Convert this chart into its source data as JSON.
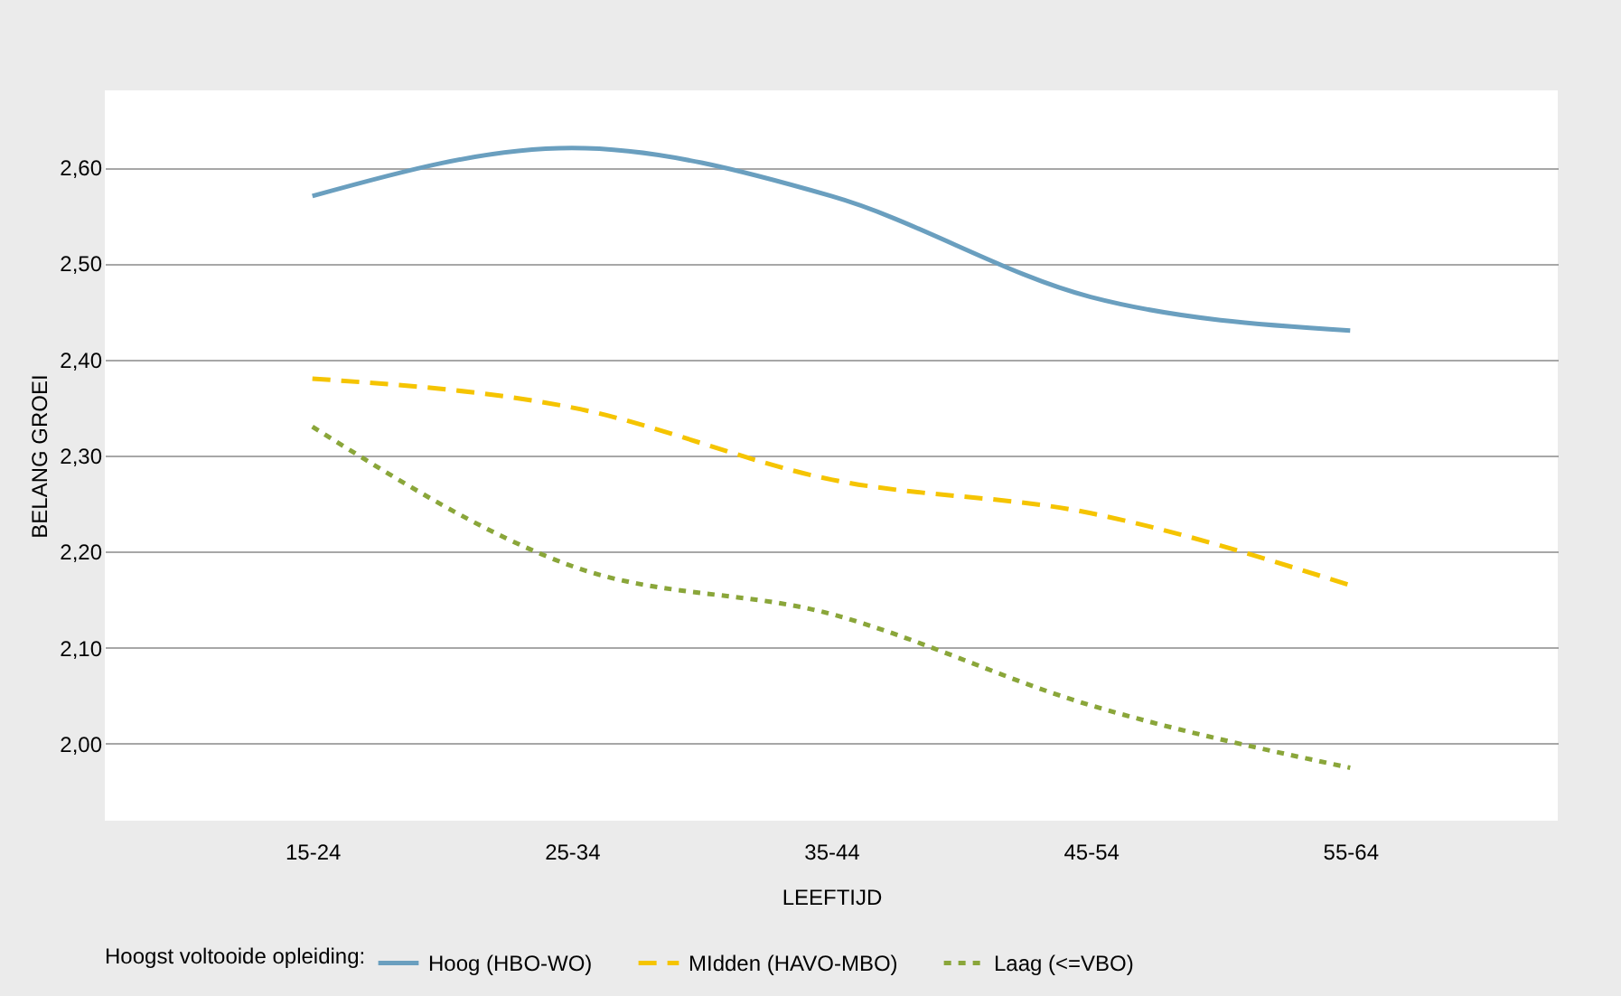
{
  "chart_data": {
    "type": "line",
    "xlabel": "LEEFTIJD",
    "ylabel": "BELANG GROEI",
    "legend_title": "Hoogst voltooide opleiding:",
    "legend": "bottom",
    "grid": "y",
    "marker": "none",
    "categories": [
      "15-24",
      "25-34",
      "35-44",
      "45-54",
      "55-64"
    ],
    "ylim": [
      1.92,
      2.68
    ],
    "yticks": [
      {
        "value": 2.0,
        "label": "2,00"
      },
      {
        "value": 2.1,
        "label": "2,10"
      },
      {
        "value": 2.2,
        "label": "2,20"
      },
      {
        "value": 2.3,
        "label": "2,30"
      },
      {
        "value": 2.4,
        "label": "2,40"
      },
      {
        "value": 2.5,
        "label": "2,50"
      },
      {
        "value": 2.6,
        "label": "2,60"
      }
    ],
    "series": [
      {
        "name": "Hoog (HBO-WO)",
        "color": "#6a9fbf",
        "line_style": "solid",
        "values": [
          2.57,
          2.62,
          2.57,
          2.465,
          2.43
        ]
      },
      {
        "name": "MIdden (HAVO-MBO)",
        "color": "#f5c400",
        "line_style": "dashed",
        "values": [
          2.38,
          2.35,
          2.275,
          2.24,
          2.165
        ]
      },
      {
        "name": "Laag (<=VBO)",
        "color": "#8aa63a",
        "line_style": "dotted",
        "values": [
          2.33,
          2.185,
          2.135,
          2.04,
          1.975
        ]
      }
    ]
  }
}
